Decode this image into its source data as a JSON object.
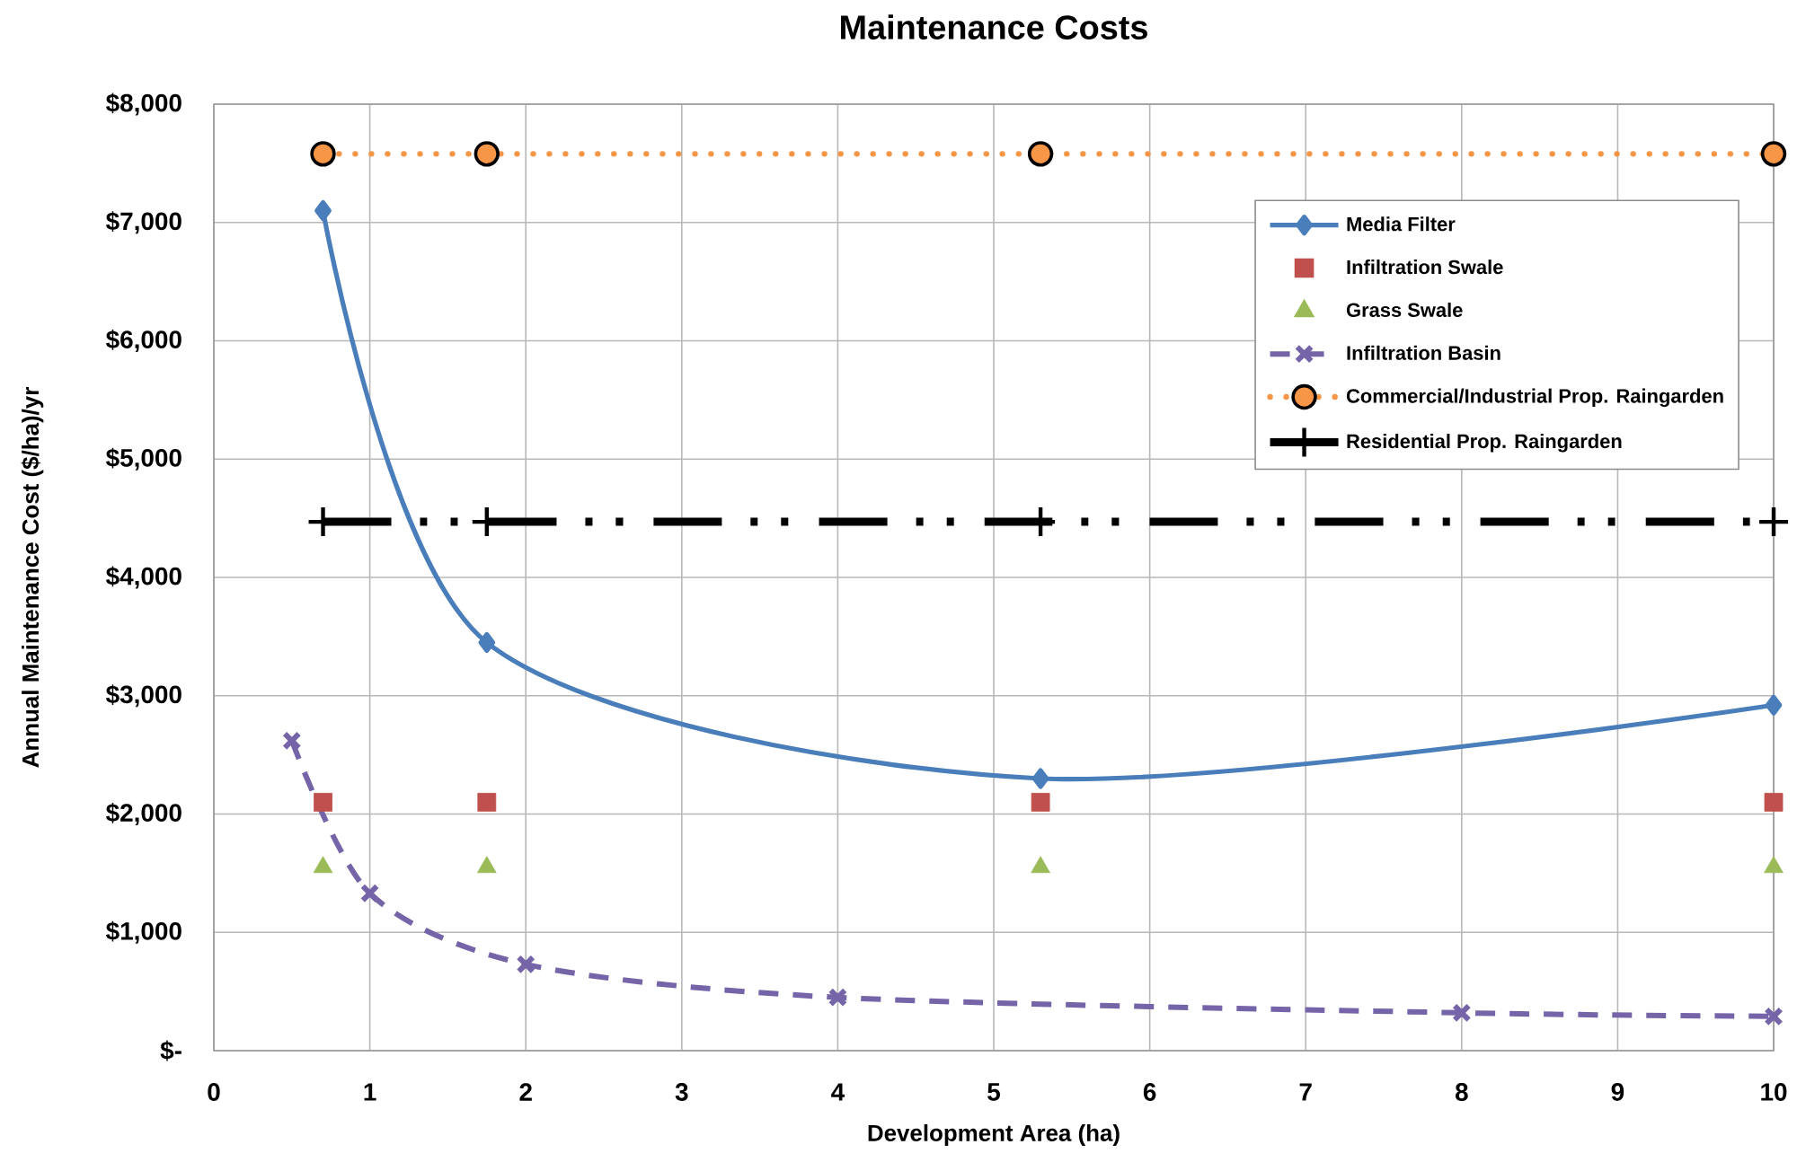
{
  "chart_data": {
    "type": "line",
    "title": "Maintenance Costs",
    "xlabel": "Development Area (ha)",
    "ylabel": "Annual Maintenance Cost ($/ha)/yr",
    "xlim": [
      0,
      10
    ],
    "ylim": [
      0,
      8000
    ],
    "xticks": [
      0,
      1,
      2,
      3,
      4,
      5,
      6,
      7,
      8,
      9,
      10
    ],
    "yticks": [
      {
        "value": 0,
        "label": "$-"
      },
      {
        "value": 1000,
        "label": "$1,000"
      },
      {
        "value": 2000,
        "label": "$2,000"
      },
      {
        "value": 3000,
        "label": "$3,000"
      },
      {
        "value": 4000,
        "label": "$4,000"
      },
      {
        "value": 5000,
        "label": "$5,000"
      },
      {
        "value": 6000,
        "label": "$6,000"
      },
      {
        "value": 7000,
        "label": "$7,000"
      },
      {
        "value": 8000,
        "label": "$8,000"
      }
    ],
    "grid": true,
    "legend": "top right",
    "series": [
      {
        "name": "Media Filter",
        "color": "#4a7ebb",
        "marker": "diamond",
        "line_style": "solid",
        "x": [
          0.7,
          1.75,
          5.3,
          10
        ],
        "values": [
          7100,
          3450,
          2300,
          2920
        ]
      },
      {
        "name": "Infiltration Swale",
        "type": "scatter",
        "color": "#c0504d",
        "marker": "square",
        "x": [
          0.7,
          1.75,
          5.3,
          10
        ],
        "values": [
          2100,
          2100,
          2100,
          2100
        ]
      },
      {
        "name": "Grass Swale",
        "type": "scatter",
        "color": "#9bbb59",
        "marker": "triangle",
        "x": [
          0.7,
          1.75,
          5.3,
          10
        ],
        "values": [
          1550,
          1550,
          1550,
          1550
        ]
      },
      {
        "name": "Infiltration Basin",
        "color": "#7565a8",
        "marker": "cross",
        "line_style": "dashed",
        "x": [
          0.5,
          1,
          2,
          4,
          8,
          10
        ],
        "values": [
          2620,
          1330,
          730,
          450,
          320,
          290
        ]
      },
      {
        "name": "Commercial/Industrial Prop. Raingarden",
        "color": "#f79646",
        "marker": "circle",
        "line_style": "dotted",
        "x": [
          0.7,
          1.75,
          5.3,
          10
        ],
        "values": [
          7580,
          7580,
          7580,
          7580
        ]
      },
      {
        "name": "Residential Prop. Raingarden",
        "color": "#000000",
        "marker": "plus",
        "line_style": "dashdotdot",
        "x": [
          0.7,
          1.75,
          5.3,
          10
        ],
        "values": [
          4470,
          4470,
          4470,
          4470
        ]
      }
    ]
  }
}
